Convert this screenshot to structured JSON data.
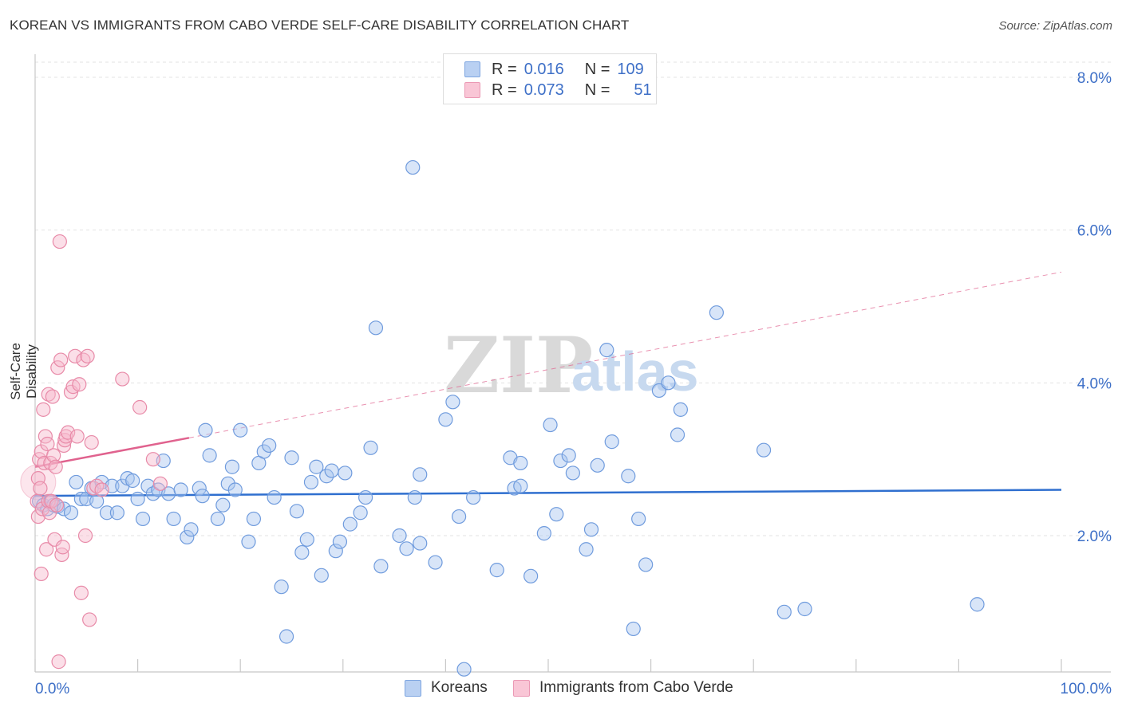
{
  "title": "KOREAN VS IMMIGRANTS FROM CABO VERDE SELF-CARE DISABILITY CORRELATION CHART",
  "source": "Source: ZipAtlas.com",
  "watermark": {
    "zip": "ZIP",
    "atlas": "atlas"
  },
  "legend": {
    "r_label": "R =",
    "n_label": "N =",
    "series1": {
      "r": "0.016",
      "n": "109"
    },
    "series2": {
      "r": "0.073",
      "n": "51"
    }
  },
  "bottom_legend": {
    "series1": "Koreans",
    "series2": "Immigrants from Cabo Verde"
  },
  "chart_data": {
    "type": "scatter",
    "title": "KOREAN VS IMMIGRANTS FROM CABO VERDE SELF-CARE DISABILITY CORRELATION CHART",
    "xlabel": "",
    "ylabel": "Self-Care Disability",
    "xlim": [
      0,
      100
    ],
    "ylim": [
      0,
      8.4
    ],
    "x_tick_labels": {
      "left": "0.0%",
      "right": "100.0%"
    },
    "y_ticks": [
      2.0,
      4.0,
      6.0,
      8.0
    ],
    "y_tick_labels": [
      "2.0%",
      "4.0%",
      "6.0%",
      "8.0%"
    ],
    "grid": true,
    "colors": {
      "series1_fill": "#a9c6f0",
      "series1_stroke": "#6f9bdd",
      "series1_line": "#2f6fcf",
      "series2_fill": "#f6b8cc",
      "series2_stroke": "#e88aa8",
      "series2_line": "#e0628e",
      "tick_text": "#3d6fc7"
    },
    "series": [
      {
        "name": "Koreans",
        "trend": {
          "x": [
            0,
            100
          ],
          "y": [
            2.52,
            2.6
          ]
        },
        "points": [
          [
            0.4,
            2.45
          ],
          [
            0.8,
            2.4
          ],
          [
            1.2,
            2.35
          ],
          [
            1.5,
            2.45
          ],
          [
            1.8,
            2.4
          ],
          [
            2.2,
            2.38
          ],
          [
            2.8,
            2.35
          ],
          [
            3.5,
            2.3
          ],
          [
            4,
            2.7
          ],
          [
            4.5,
            2.48
          ],
          [
            5,
            2.48
          ],
          [
            5.5,
            2.62
          ],
          [
            6,
            2.45
          ],
          [
            6.5,
            2.7
          ],
          [
            7,
            2.3
          ],
          [
            7.5,
            2.65
          ],
          [
            8,
            2.3
          ],
          [
            8.5,
            2.65
          ],
          [
            9,
            2.75
          ],
          [
            9.5,
            2.72
          ],
          [
            10,
            2.48
          ],
          [
            10.5,
            2.22
          ],
          [
            11,
            2.65
          ],
          [
            11.5,
            2.55
          ],
          [
            12,
            2.6
          ],
          [
            12.5,
            2.98
          ],
          [
            13,
            2.55
          ],
          [
            13.5,
            2.22
          ],
          [
            14.2,
            2.6
          ],
          [
            14.8,
            1.98
          ],
          [
            15.2,
            2.08
          ],
          [
            16,
            2.62
          ],
          [
            16.3,
            2.52
          ],
          [
            16.6,
            3.38
          ],
          [
            17,
            3.05
          ],
          [
            17.8,
            2.22
          ],
          [
            18.3,
            2.4
          ],
          [
            18.8,
            2.68
          ],
          [
            19.2,
            2.9
          ],
          [
            19.5,
            2.6
          ],
          [
            20,
            3.38
          ],
          [
            20.8,
            1.92
          ],
          [
            21.3,
            2.22
          ],
          [
            21.8,
            2.95
          ],
          [
            22.3,
            3.1
          ],
          [
            22.8,
            3.18
          ],
          [
            23.3,
            2.5
          ],
          [
            24,
            1.33
          ],
          [
            24.5,
            0.68
          ],
          [
            25,
            3.02
          ],
          [
            25.5,
            2.32
          ],
          [
            26,
            1.78
          ],
          [
            26.5,
            1.95
          ],
          [
            26.9,
            2.7
          ],
          [
            27.4,
            2.9
          ],
          [
            27.9,
            1.48
          ],
          [
            28.4,
            2.78
          ],
          [
            28.9,
            2.85
          ],
          [
            29.3,
            1.8
          ],
          [
            29.7,
            1.92
          ],
          [
            30.2,
            2.82
          ],
          [
            30.7,
            2.15
          ],
          [
            31.7,
            2.3
          ],
          [
            32.2,
            2.5
          ],
          [
            32.7,
            3.15
          ],
          [
            33.2,
            4.72
          ],
          [
            33.7,
            1.6
          ],
          [
            35.5,
            2.0
          ],
          [
            36.2,
            1.83
          ],
          [
            37,
            2.5
          ],
          [
            37.5,
            2.8
          ],
          [
            37.5,
            1.9
          ],
          [
            36.8,
            6.82
          ],
          [
            39,
            1.65
          ],
          [
            40,
            3.52
          ],
          [
            40.7,
            3.75
          ],
          [
            41.3,
            2.25
          ],
          [
            41.8,
            0.25
          ],
          [
            42.7,
            2.5
          ],
          [
            45,
            1.55
          ],
          [
            46.3,
            3.02
          ],
          [
            46.7,
            2.62
          ],
          [
            47.3,
            2.65
          ],
          [
            47.3,
            2.95
          ],
          [
            48.3,
            1.47
          ],
          [
            49.6,
            2.03
          ],
          [
            50.2,
            3.45
          ],
          [
            50.8,
            2.28
          ],
          [
            51.2,
            2.98
          ],
          [
            52,
            3.05
          ],
          [
            52.4,
            2.82
          ],
          [
            53.7,
            1.82
          ],
          [
            54.2,
            2.08
          ],
          [
            54.8,
            2.92
          ],
          [
            55.7,
            4.43
          ],
          [
            56.2,
            3.23
          ],
          [
            57.8,
            2.78
          ],
          [
            58.3,
            0.78
          ],
          [
            58.8,
            2.22
          ],
          [
            59.5,
            1.62
          ],
          [
            60.8,
            3.9
          ],
          [
            61.7,
            4.0
          ],
          [
            62.6,
            3.32
          ],
          [
            62.9,
            3.65
          ],
          [
            66.4,
            4.92
          ],
          [
            71,
            3.12
          ],
          [
            73,
            1.0
          ],
          [
            75,
            1.04
          ],
          [
            91.8,
            1.1
          ]
        ]
      },
      {
        "name": "Immigrants from Cabo Verde",
        "trend": {
          "x": [
            0,
            15
          ],
          "y": [
            2.9,
            3.28
          ]
        },
        "trend_extension": {
          "x": [
            15,
            100
          ],
          "y": [
            3.28,
            5.45
          ]
        },
        "points": [
          [
            0.2,
            2.45
          ],
          [
            0.3,
            2.25
          ],
          [
            0.3,
            2.75
          ],
          [
            0.4,
            3.0
          ],
          [
            0.5,
            2.62
          ],
          [
            0.6,
            3.1
          ],
          [
            0.6,
            1.5
          ],
          [
            0.7,
            2.35
          ],
          [
            0.8,
            3.65
          ],
          [
            0.9,
            2.95
          ],
          [
            1.0,
            3.3
          ],
          [
            1.1,
            1.82
          ],
          [
            1.2,
            3.2
          ],
          [
            1.3,
            3.85
          ],
          [
            1.3,
            2.45
          ],
          [
            1.4,
            2.3
          ],
          [
            1.5,
            2.95
          ],
          [
            1.6,
            2.45
          ],
          [
            1.7,
            3.82
          ],
          [
            1.8,
            3.05
          ],
          [
            1.9,
            1.95
          ],
          [
            2.0,
            2.9
          ],
          [
            2.1,
            2.4
          ],
          [
            2.2,
            4.2
          ],
          [
            2.3,
            0.35
          ],
          [
            2.4,
            5.85
          ],
          [
            2.5,
            4.3
          ],
          [
            2.6,
            1.75
          ],
          [
            2.7,
            1.85
          ],
          [
            2.8,
            3.18
          ],
          [
            2.9,
            3.25
          ],
          [
            3.0,
            3.3
          ],
          [
            3.2,
            3.35
          ],
          [
            3.5,
            3.88
          ],
          [
            3.7,
            3.95
          ],
          [
            3.9,
            4.35
          ],
          [
            4.1,
            3.3
          ],
          [
            4.3,
            3.98
          ],
          [
            4.5,
            1.25
          ],
          [
            4.7,
            4.3
          ],
          [
            4.9,
            2.0
          ],
          [
            5.1,
            4.35
          ],
          [
            5.3,
            0.9
          ],
          [
            5.5,
            3.22
          ],
          [
            5.7,
            2.62
          ],
          [
            6.0,
            2.65
          ],
          [
            6.5,
            2.6
          ],
          [
            8.5,
            4.05
          ],
          [
            10.2,
            3.68
          ],
          [
            11.5,
            3.0
          ],
          [
            12.2,
            2.68
          ]
        ]
      }
    ]
  }
}
